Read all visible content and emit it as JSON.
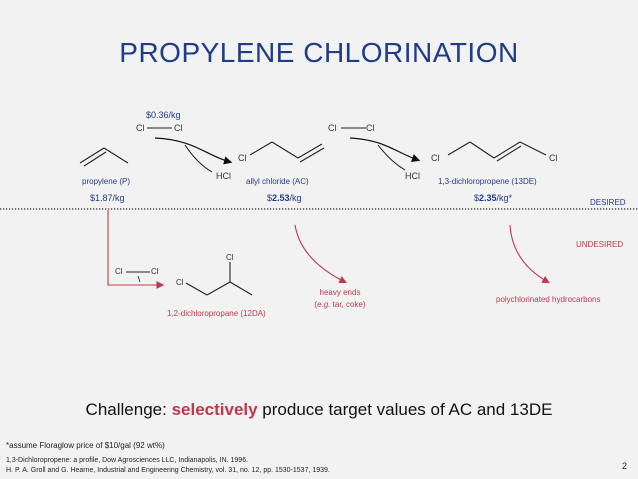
{
  "title": "PROPYLENE CHLORINATION",
  "cl2_price": "$0.36/kg",
  "propylene": {
    "label": "propylene (P)",
    "price": "$1.87/kg"
  },
  "allyl_chloride": {
    "label": "allyl chloride (AC)",
    "price_prefix": "$",
    "price_value": "2.53",
    "price_suffix": "/kg"
  },
  "dichloropropene": {
    "label": "1,3-dichloropropene (13DE)",
    "price_prefix": "$",
    "price_value": "2.35",
    "price_suffix": "/kg*"
  },
  "hcl_1": "HCl",
  "hcl_2": "HCl",
  "cl": "Cl",
  "desired": "DESIRED",
  "undesired": "UNDESIRED",
  "dichloropropane": {
    "label": "1,2-dichloropropane (12DA)"
  },
  "heavy_ends": {
    "line1": "heavy ends",
    "line2_italic": "e.g.",
    "line2_rest": " tar, coke)",
    "line2_open": "("
  },
  "polychlorinated": "polychlorinated hydrocarbons",
  "challenge": {
    "prefix": "Challenge: ",
    "highlight": "selectively",
    "suffix": " produce target values of AC and 13DE"
  },
  "footnote": "*assume Floraglow price of $10/gal (92 wt%)",
  "ref1": "1,3-Dichloropropene: a profile, Dow Agrosciences LLC, Indianapolis, IN. 1996.",
  "ref2": "H. P. A. Groll and G. Hearne, Industrial and Engineering Chemistry, vol. 31, no. 12, pp. 1530-1537, 1939.",
  "page_number": "2",
  "colors": {
    "title": "#1f3c88",
    "accent": "#c0394b",
    "background": "#f2f2f2"
  }
}
